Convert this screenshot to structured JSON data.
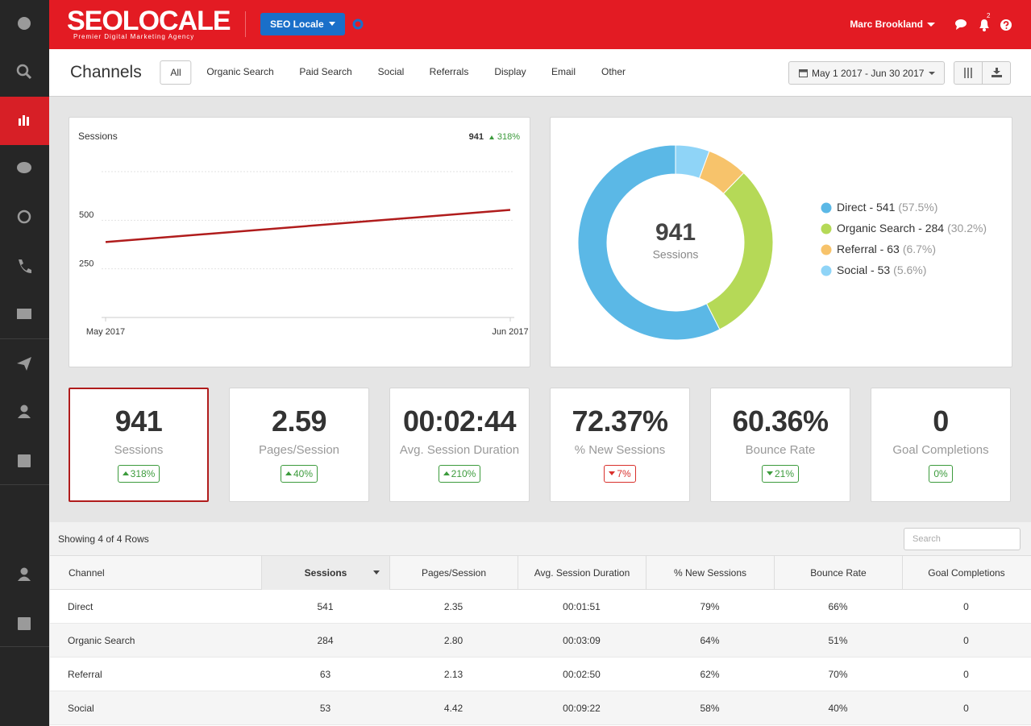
{
  "header": {
    "logo": "SEOLOCALE",
    "tagline": "Premier Digital Marketing Agency",
    "account_button": "SEO Locale",
    "user": "Marc Brookland",
    "notifications": "2"
  },
  "toolbar": {
    "title": "Channels",
    "tabs": [
      "All",
      "Organic Search",
      "Paid Search",
      "Social",
      "Referrals",
      "Display",
      "Email",
      "Other"
    ],
    "active_tab": 0,
    "date_range": "May 1 2017 - Jun 30 2017"
  },
  "chart_data": [
    {
      "type": "line",
      "title": "Sessions",
      "total": 941,
      "change": "318%",
      "change_color": "#3c9b3c",
      "categories": [
        "May 2017",
        "Jun 2017"
      ],
      "values": [
        388,
        553
      ],
      "color": "#b01c1c",
      "ylim": [
        0,
        750
      ],
      "yticks": [
        250,
        500
      ],
      "grid": true
    },
    {
      "type": "pie",
      "categories": [
        "Direct",
        "Organic Search",
        "Referral",
        "Social"
      ],
      "values": [
        541,
        284,
        63,
        53
      ],
      "colors": [
        "#5bb8e6",
        "#b5d957",
        "#f7c36b",
        "#8fd4f7"
      ],
      "legend_labels": [
        "Direct - 541",
        "Organic Search - 284",
        "Referral - 63",
        "Social - 53"
      ],
      "share_labels": [
        "(57.5%)",
        "(30.2%)",
        "(6.7%)",
        "(5.6%)"
      ],
      "center_value": 941,
      "center_label": "Sessions"
    }
  ],
  "kpis": [
    {
      "value": "941",
      "label": "Sessions",
      "change": "318%",
      "trend": "up",
      "color": "#3c9b3c"
    },
    {
      "value": "2.59",
      "label": "Pages/Session",
      "change": "40%",
      "trend": "up",
      "color": "#3c9b3c"
    },
    {
      "value": "00:02:44",
      "label": "Avg. Session Duration",
      "change": "210%",
      "trend": "up",
      "color": "#3c9b3c"
    },
    {
      "value": "72.37%",
      "label": "% New Sessions",
      "change": "7%",
      "trend": "down",
      "color": "#d9302c"
    },
    {
      "value": "60.36%",
      "label": "Bounce Rate",
      "change": "21%",
      "trend": "down",
      "color": "#3c9b3c"
    },
    {
      "value": "0",
      "label": "Goal Completions",
      "change": "0%",
      "trend": null,
      "color": "#3c9b3c"
    }
  ],
  "table": {
    "summary": "Showing 4 of 4 Rows",
    "search_placeholder": "Search",
    "columns": [
      "Channel",
      "Sessions",
      "Pages/Session",
      "Avg. Session Duration",
      "% New Sessions",
      "Bounce Rate",
      "Goal Completions"
    ],
    "sorted_column": 1,
    "rows": [
      [
        "Direct",
        "541",
        "2.35",
        "00:01:51",
        "79%",
        "66%",
        "0"
      ],
      [
        "Organic Search",
        "284",
        "2.80",
        "00:03:09",
        "64%",
        "51%",
        "0"
      ],
      [
        "Referral",
        "63",
        "2.13",
        "00:02:50",
        "62%",
        "70%",
        "0"
      ],
      [
        "Social",
        "53",
        "4.42",
        "00:09:22",
        "58%",
        "40%",
        "0"
      ]
    ]
  }
}
